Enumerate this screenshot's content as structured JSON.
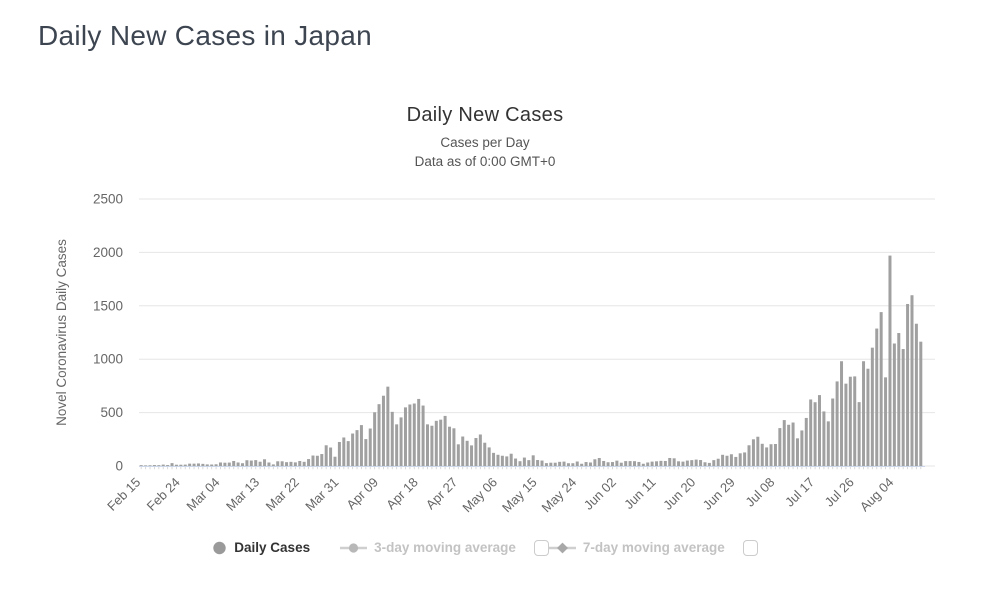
{
  "page": {
    "title": "Daily New Cases in Japan"
  },
  "chart": {
    "title": "Daily New Cases",
    "subtitle_line1": "Cases per Day",
    "subtitle_line2": "Data as of 0:00 GMT+0",
    "y_axis_title": "Novel Coronavirus Daily Cases",
    "legend": {
      "items": [
        {
          "label": "Daily Cases",
          "marker": "circle",
          "state": "active",
          "has_checkbox": false
        },
        {
          "label": "3-day moving average",
          "marker": "line-circle",
          "state": "inactive",
          "has_checkbox": true,
          "checked": false
        },
        {
          "label": "7-day moving average",
          "marker": "line-diamond",
          "state": "inactive",
          "has_checkbox": true,
          "checked": false
        }
      ]
    },
    "colors": {
      "bar": "#a0a0a0",
      "grid": "#e6e6e6",
      "axis_line": "#ccd6eb",
      "axis_tick": "#d4d4d4",
      "axis_text": "#666666",
      "title_text": "#333333",
      "subtitle_text": "#555555",
      "page_title_text": "#3d4551",
      "legend_active": "#333333",
      "legend_inactive": "#c3c3c3",
      "background": "#ffffff"
    }
  },
  "chart_data": {
    "type": "bar",
    "title": "Daily New Cases",
    "subtitle": [
      "Cases per Day",
      "Data as of 0:00 GMT+0"
    ],
    "series_name": "Daily Cases",
    "ylabel": "Novel Coronavirus Daily Cases",
    "ylim": [
      0,
      2500
    ],
    "yticks": [
      0,
      500,
      1000,
      1500,
      2000,
      2500
    ],
    "x_start_date": "Feb 15",
    "x_end_date": "Aug 10",
    "x_tick_interval_days": 9,
    "x_tick_labels": [
      "Feb 15",
      "Feb 24",
      "Mar 04",
      "Mar 13",
      "Mar 22",
      "Mar 31",
      "Apr 09",
      "Apr 18",
      "Apr 27",
      "May 06",
      "May 15",
      "May 24",
      "Jun 02",
      "Jun 11",
      "Jun 20",
      "Jun 29",
      "Jul 08",
      "Jul 17",
      "Jul 26",
      "Aug 04"
    ],
    "values": [
      8,
      6,
      7,
      9,
      8,
      13,
      9,
      27,
      12,
      12,
      13,
      22,
      22,
      24,
      20,
      15,
      14,
      16,
      33,
      31,
      32,
      47,
      33,
      26,
      54,
      51,
      55,
      40,
      63,
      33,
      15,
      44,
      44,
      36,
      39,
      34,
      47,
      39,
      65,
      98,
      96,
      112,
      194,
      173,
      87,
      225,
      267,
      233,
      304,
      336,
      383,
      252,
      351,
      503,
      579,
      658,
      743,
      507,
      390,
      455,
      549,
      576,
      585,
      628,
      566,
      390,
      377,
      423,
      434,
      469,
      368,
      353,
      203,
      276,
      236,
      193,
      262,
      295,
      218,
      174,
      123,
      105,
      96,
      90,
      115,
      70,
      45,
      79,
      55,
      100,
      56,
      51,
      27,
      31,
      31,
      39,
      41,
      26,
      26,
      42,
      21,
      37,
      33,
      63,
      75,
      47,
      35,
      37,
      50,
      31,
      46,
      46,
      45,
      38,
      21,
      33,
      41,
      44,
      48,
      47,
      75,
      72,
      44,
      41,
      51,
      55,
      60,
      56,
      35,
      29,
      55,
      68,
      105,
      96,
      110,
      85,
      119,
      127,
      194,
      250,
      274,
      208,
      174,
      204,
      206,
      355,
      430,
      386,
      407,
      259,
      333,
      450,
      623,
      597,
      664,
      511,
      418,
      632,
      792,
      981,
      771,
      836,
      839,
      598,
      981,
      911,
      1108,
      1287,
      1441,
      830,
      1970,
      1147,
      1245,
      1095,
      1517,
      1599,
      1332,
      1164
    ]
  }
}
